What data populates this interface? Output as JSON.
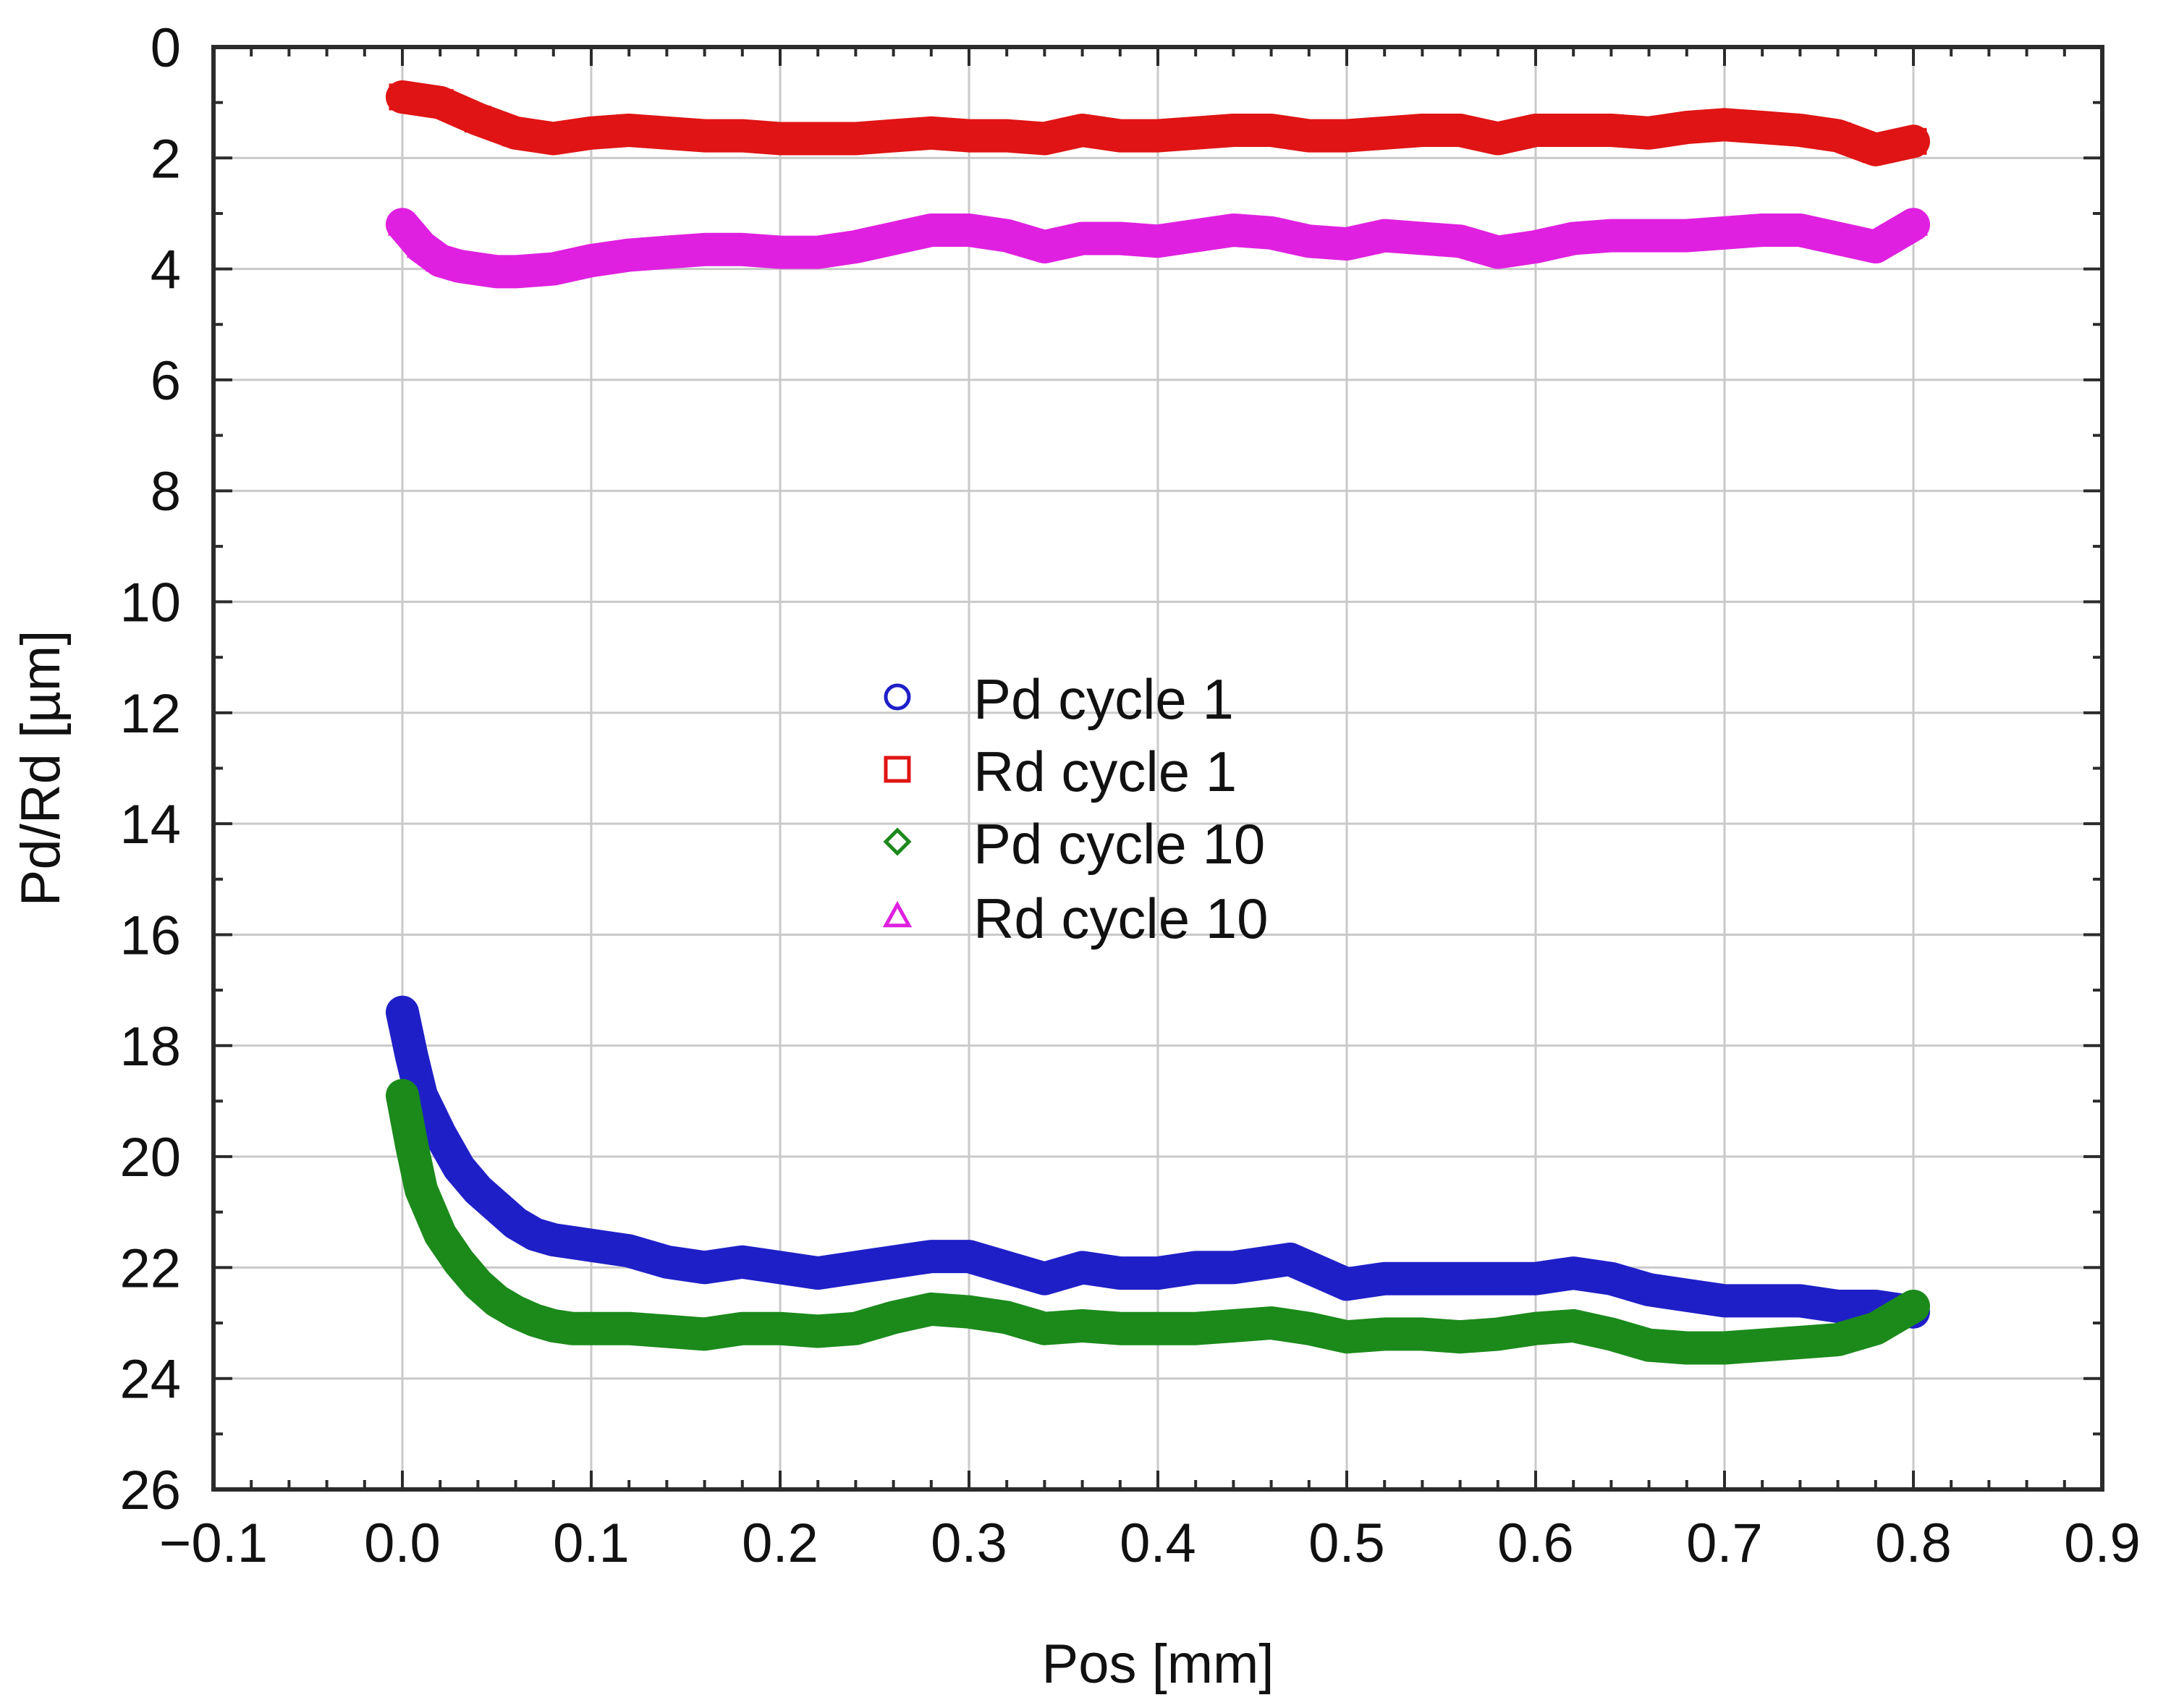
{
  "chart_data": {
    "type": "scatter",
    "xlabel": "Pos [mm]",
    "ylabel": "Pd/Rd [µm]",
    "xlim": [
      -0.1,
      0.9
    ],
    "ylim": [
      0,
      26
    ],
    "y_inverted": true,
    "grid": true,
    "legend_position": "center",
    "x_ticks": [
      "−0.1",
      "0.0",
      "0.1",
      "0.2",
      "0.3",
      "0.4",
      "0.5",
      "0.6",
      "0.7",
      "0.8",
      "0.9"
    ],
    "y_ticks": [
      "0",
      "2",
      "4",
      "6",
      "8",
      "10",
      "12",
      "14",
      "16",
      "18",
      "20",
      "22",
      "24",
      "26"
    ],
    "series": [
      {
        "name": "Pd cycle 1",
        "color": "#1f1fc8",
        "marker": "circle",
        "x": [
          0.0,
          0.005,
          0.01,
          0.02,
          0.03,
          0.04,
          0.05,
          0.06,
          0.07,
          0.08,
          0.09,
          0.1,
          0.12,
          0.14,
          0.16,
          0.18,
          0.2,
          0.22,
          0.24,
          0.26,
          0.28,
          0.3,
          0.32,
          0.34,
          0.36,
          0.38,
          0.4,
          0.42,
          0.44,
          0.46,
          0.47,
          0.48,
          0.5,
          0.52,
          0.54,
          0.56,
          0.58,
          0.6,
          0.62,
          0.64,
          0.66,
          0.68,
          0.7,
          0.72,
          0.74,
          0.76,
          0.78,
          0.8
        ],
        "y": [
          17.4,
          18.2,
          18.9,
          19.6,
          20.2,
          20.6,
          20.9,
          21.2,
          21.4,
          21.5,
          21.55,
          21.6,
          21.7,
          21.9,
          22.0,
          21.9,
          22.0,
          22.1,
          22.0,
          21.9,
          21.8,
          21.8,
          22.0,
          22.2,
          22.0,
          22.1,
          22.1,
          22.0,
          22.0,
          21.9,
          21.85,
          22.0,
          22.3,
          22.2,
          22.2,
          22.2,
          22.2,
          22.2,
          22.1,
          22.2,
          22.4,
          22.5,
          22.6,
          22.6,
          22.6,
          22.7,
          22.7,
          22.8
        ]
      },
      {
        "name": "Rd cycle 1",
        "color": "#e01414",
        "marker": "square",
        "x": [
          0.0,
          0.02,
          0.04,
          0.06,
          0.08,
          0.1,
          0.12,
          0.14,
          0.16,
          0.18,
          0.2,
          0.22,
          0.24,
          0.26,
          0.28,
          0.3,
          0.32,
          0.34,
          0.36,
          0.38,
          0.4,
          0.42,
          0.44,
          0.46,
          0.48,
          0.5,
          0.52,
          0.54,
          0.56,
          0.58,
          0.6,
          0.62,
          0.64,
          0.66,
          0.68,
          0.7,
          0.72,
          0.74,
          0.76,
          0.78,
          0.8
        ],
        "y": [
          0.9,
          1.0,
          1.3,
          1.55,
          1.65,
          1.55,
          1.5,
          1.55,
          1.6,
          1.6,
          1.65,
          1.65,
          1.65,
          1.6,
          1.55,
          1.6,
          1.6,
          1.65,
          1.5,
          1.6,
          1.6,
          1.55,
          1.5,
          1.5,
          1.6,
          1.6,
          1.55,
          1.5,
          1.5,
          1.65,
          1.5,
          1.5,
          1.5,
          1.55,
          1.45,
          1.4,
          1.45,
          1.5,
          1.6,
          1.85,
          1.7
        ]
      },
      {
        "name": "Pd cycle 10",
        "color": "#1b8a1b",
        "marker": "diamond",
        "x": [
          0.0,
          0.005,
          0.01,
          0.02,
          0.03,
          0.04,
          0.05,
          0.06,
          0.07,
          0.08,
          0.09,
          0.1,
          0.12,
          0.14,
          0.16,
          0.18,
          0.2,
          0.22,
          0.24,
          0.26,
          0.28,
          0.3,
          0.32,
          0.34,
          0.36,
          0.38,
          0.4,
          0.42,
          0.44,
          0.46,
          0.48,
          0.5,
          0.52,
          0.54,
          0.56,
          0.58,
          0.6,
          0.62,
          0.64,
          0.66,
          0.68,
          0.7,
          0.72,
          0.74,
          0.76,
          0.78,
          0.8
        ],
        "y": [
          18.9,
          19.8,
          20.6,
          21.4,
          21.9,
          22.3,
          22.6,
          22.8,
          22.95,
          23.05,
          23.1,
          23.1,
          23.1,
          23.15,
          23.2,
          23.1,
          23.1,
          23.15,
          23.1,
          22.9,
          22.75,
          22.8,
          22.9,
          23.1,
          23.05,
          23.1,
          23.1,
          23.1,
          23.05,
          23.0,
          23.1,
          23.25,
          23.2,
          23.2,
          23.25,
          23.2,
          23.1,
          23.05,
          23.2,
          23.4,
          23.45,
          23.45,
          23.4,
          23.35,
          23.3,
          23.1,
          22.7
        ]
      },
      {
        "name": "Rd cycle 10",
        "color": "#e020e0",
        "marker": "triangle",
        "x": [
          0.0,
          0.01,
          0.02,
          0.03,
          0.04,
          0.05,
          0.06,
          0.08,
          0.1,
          0.12,
          0.14,
          0.16,
          0.18,
          0.2,
          0.22,
          0.24,
          0.26,
          0.28,
          0.3,
          0.32,
          0.34,
          0.36,
          0.38,
          0.4,
          0.42,
          0.44,
          0.46,
          0.48,
          0.5,
          0.52,
          0.54,
          0.56,
          0.58,
          0.6,
          0.62,
          0.64,
          0.66,
          0.68,
          0.7,
          0.72,
          0.74,
          0.76,
          0.78,
          0.8
        ],
        "y": [
          3.2,
          3.6,
          3.85,
          3.95,
          4.0,
          4.05,
          4.05,
          4.0,
          3.85,
          3.75,
          3.7,
          3.65,
          3.65,
          3.7,
          3.7,
          3.6,
          3.45,
          3.3,
          3.3,
          3.4,
          3.6,
          3.45,
          3.45,
          3.5,
          3.4,
          3.3,
          3.35,
          3.5,
          3.55,
          3.4,
          3.45,
          3.5,
          3.7,
          3.6,
          3.45,
          3.4,
          3.4,
          3.4,
          3.35,
          3.3,
          3.3,
          3.45,
          3.6,
          3.2
        ]
      }
    ]
  }
}
